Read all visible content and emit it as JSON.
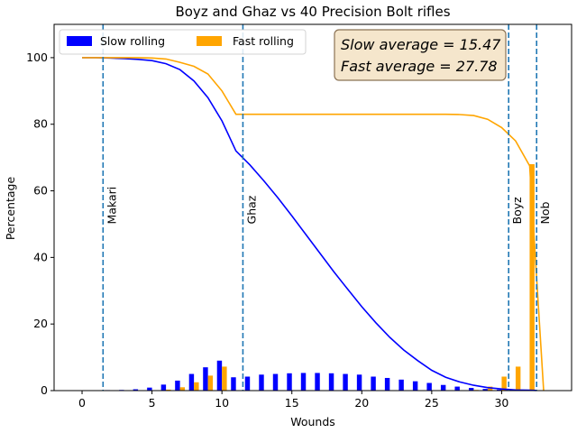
{
  "chart_data": {
    "type": "bar",
    "title": "Boyz and Ghaz vs 40 Precision Bolt rifles",
    "xlabel": "Wounds",
    "ylabel": "Percentage",
    "xlim": [
      -2,
      35
    ],
    "ylim": [
      0,
      110
    ],
    "xticks": [
      0,
      5,
      10,
      15,
      20,
      25,
      30
    ],
    "yticks": [
      0,
      20,
      40,
      60,
      80,
      100
    ],
    "legend": {
      "placement": "top-left",
      "entries": [
        "Slow rolling",
        "Fast rolling"
      ]
    },
    "colors": {
      "slow": "#0000ff",
      "fast": "#ffa500",
      "vline": "#1f77b4",
      "box_fill": "#f5e6cc",
      "box_edge": "#8b7355"
    },
    "stats": {
      "slow_line": "Slow average = 15.47",
      "fast_line": "Fast average = 27.78"
    },
    "bar_series": [
      {
        "name": "Slow rolling",
        "x": [
          0,
          1,
          2,
          3,
          4,
          5,
          6,
          7,
          8,
          9,
          10,
          11,
          12,
          13,
          14,
          15,
          16,
          17,
          18,
          19,
          20,
          21,
          22,
          23,
          24,
          25,
          26,
          27,
          28,
          29,
          30,
          31,
          32,
          33
        ],
        "values": [
          0.05,
          0.1,
          0.15,
          0.2,
          0.4,
          0.9,
          1.8,
          3.0,
          5.0,
          7.0,
          9.0,
          4.0,
          4.2,
          4.8,
          5.0,
          5.2,
          5.3,
          5.3,
          5.2,
          5.0,
          4.8,
          4.2,
          3.8,
          3.3,
          2.8,
          2.3,
          1.7,
          1.2,
          0.8,
          0.5,
          0.3,
          0.2,
          0.1,
          0.05
        ]
      },
      {
        "name": "Fast rolling",
        "x": [
          0,
          1,
          2,
          3,
          4,
          5,
          6,
          7,
          8,
          9,
          10,
          11,
          12,
          13,
          14,
          15,
          16,
          17,
          18,
          19,
          20,
          21,
          22,
          23,
          24,
          25,
          26,
          27,
          28,
          29,
          30,
          31,
          32,
          33
        ],
        "values": [
          0,
          0,
          0,
          0,
          0,
          0.1,
          0.3,
          1.0,
          2.5,
          4.5,
          7.2,
          0,
          0,
          0,
          0,
          0,
          0,
          0,
          0,
          0,
          0,
          0,
          0,
          0,
          0,
          0,
          0,
          0,
          0.2,
          1.2,
          4.2,
          7.2,
          68,
          0
        ]
      }
    ],
    "line_series": [
      {
        "name": "Slow rolling",
        "x": [
          0,
          1,
          2,
          3,
          4,
          5,
          6,
          7,
          8,
          9,
          10,
          11,
          12,
          13,
          14,
          15,
          16,
          17,
          18,
          19,
          20,
          21,
          22,
          23,
          24,
          25,
          26,
          27,
          28,
          29,
          30,
          31,
          32,
          32.5
        ],
        "values": [
          100,
          100,
          99.9,
          99.7,
          99.5,
          99.1,
          98.2,
          96.4,
          93.0,
          88.0,
          81.0,
          72.0,
          67.8,
          63.0,
          57.9,
          52.5,
          46.9,
          41.3,
          35.7,
          30.4,
          25.2,
          20.4,
          16.0,
          12.2,
          9.0,
          6.1,
          4.0,
          2.6,
          1.6,
          0.9,
          0.5,
          0.2,
          0.1,
          0.05
        ]
      },
      {
        "name": "Fast rolling",
        "x": [
          0,
          1,
          2,
          3,
          4,
          5,
          6,
          7,
          8,
          9,
          10,
          11,
          12,
          13,
          14,
          15,
          16,
          17,
          18,
          19,
          20,
          21,
          22,
          23,
          24,
          25,
          26,
          27,
          28,
          29,
          30,
          31,
          32,
          33
        ],
        "values": [
          100,
          100,
          100,
          100,
          100,
          99.9,
          99.6,
          98.6,
          97.4,
          95.1,
          90.0,
          83.0,
          83.0,
          83.0,
          83.0,
          83.0,
          83.0,
          83.0,
          83.0,
          83.0,
          83.0,
          83.0,
          83.0,
          83.0,
          83.0,
          83.0,
          83.0,
          82.9,
          82.6,
          81.5,
          79.0,
          75.0,
          67.5,
          0
        ]
      }
    ],
    "vlines": [
      {
        "x": 1.5,
        "label": "Makari"
      },
      {
        "x": 11.5,
        "label": "Ghaz"
      },
      {
        "x": 30.5,
        "label": "Boyz"
      },
      {
        "x": 32.5,
        "label": "Nob"
      }
    ]
  }
}
